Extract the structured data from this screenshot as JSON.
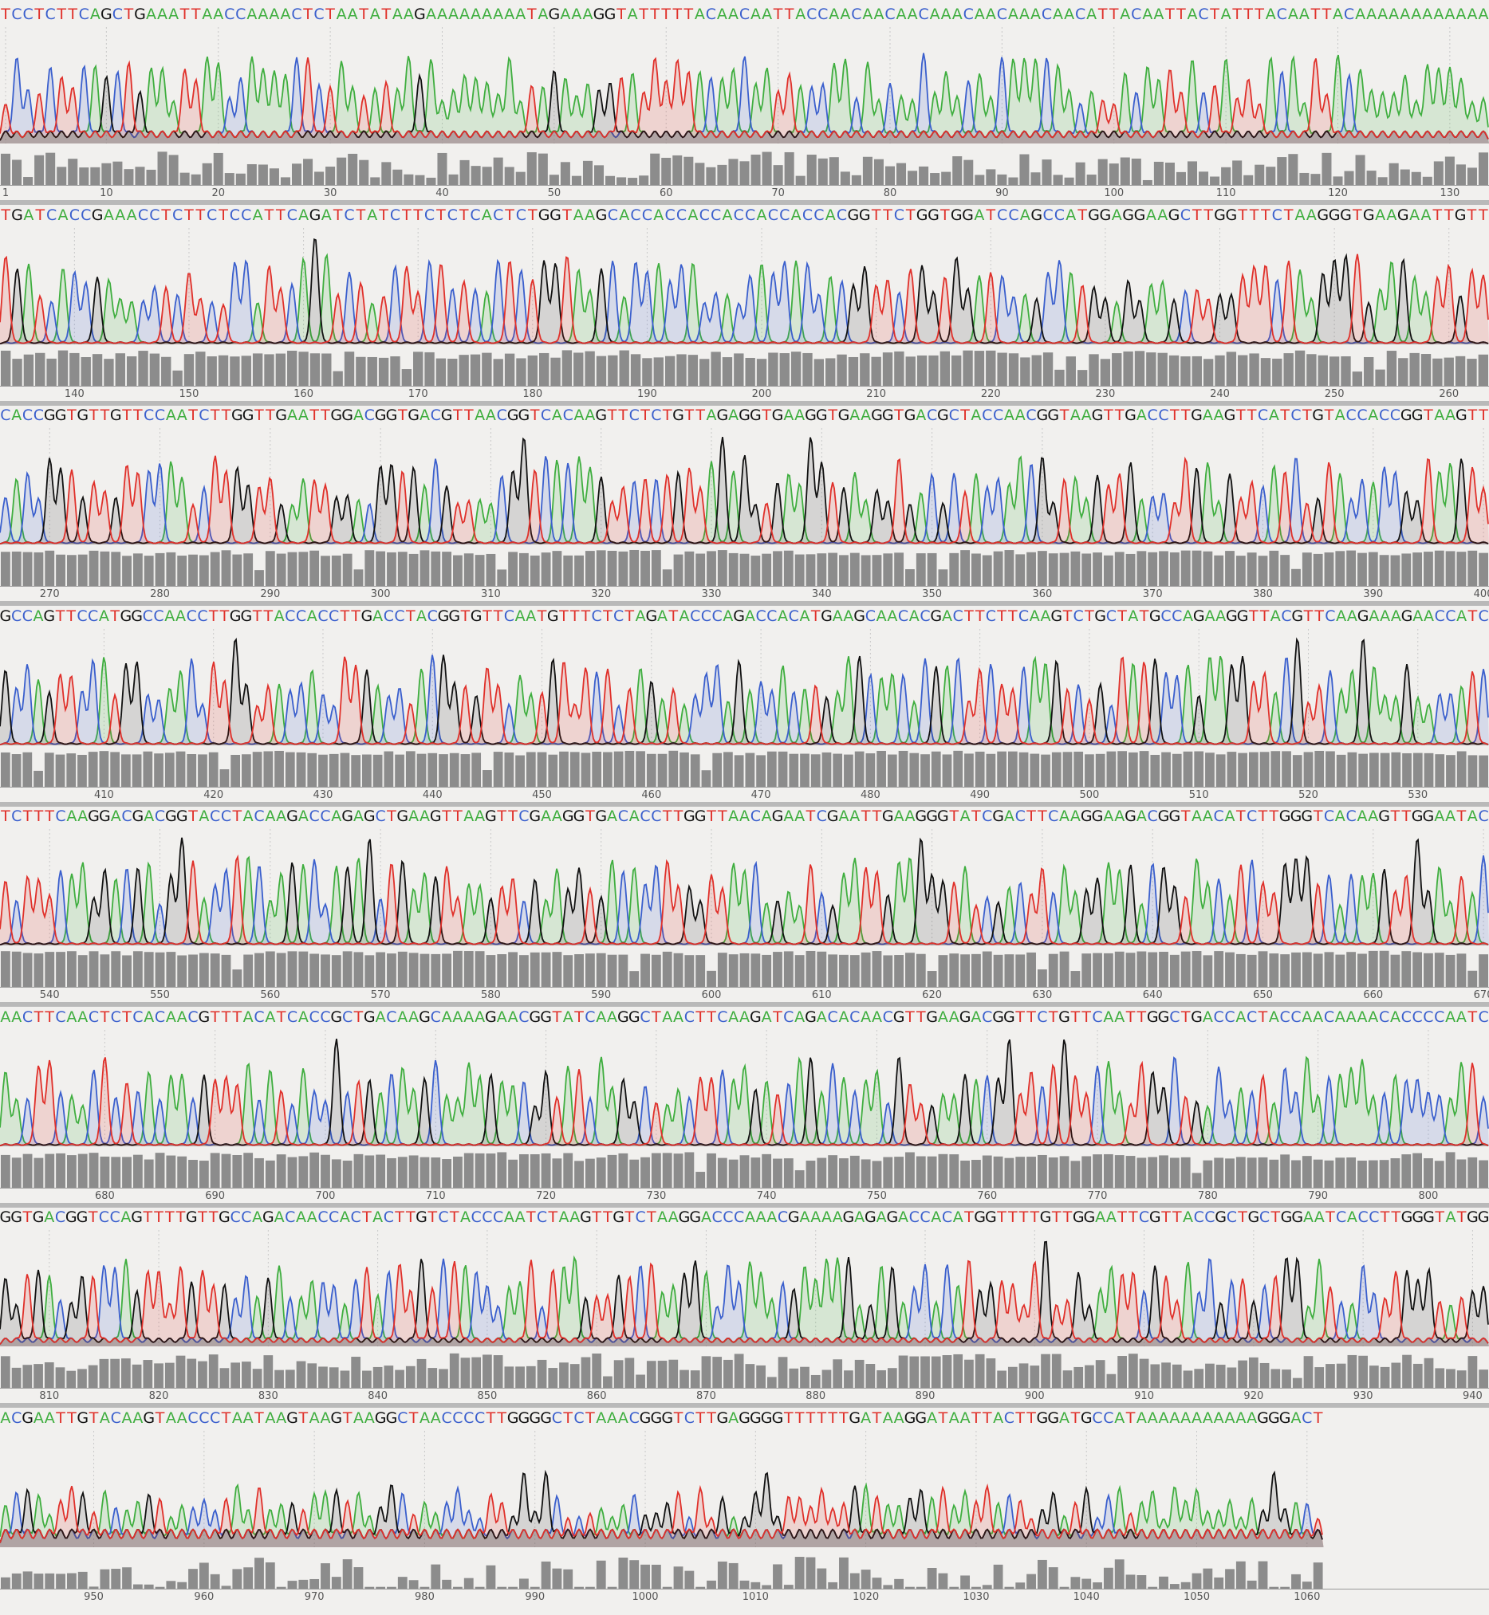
{
  "chart_data": {
    "type": "chromatogram",
    "title": "",
    "base_colors": {
      "A": "#3fae3f",
      "C": "#3a5fcd",
      "G": "#111111",
      "T": "#e0302a"
    },
    "quality_bar_color": "#8c8c8c",
    "rows": [
      {
        "start": 1,
        "seq": "TCCTCTTCAGCTGAAATTAACCAAAACTCTAATATAAGAAAAAAAAATAGAAAGGTATTTTTACAACAATTACCAACAACAACAAACAACAAACAACATTACAATTACTATTTACAATTACAAAAAAAAAAAA",
        "ticks": [
          1,
          10,
          20,
          30,
          40,
          50,
          60,
          70,
          80,
          90,
          100,
          110,
          120,
          130
        ],
        "quality": 0.55
      },
      {
        "start": 134,
        "seq": "TGATCACCGAAACCTCTTCTCCATTCAGATCTATCTTCTCTCACTCTGGTAAGCACCACCACCACCACCACCACGGTTCTGGTGGATCCAGCCATGGAGGAAGCTTGGTTTCTAAGGGTGAAGAATTGTT",
        "ticks": [
          140,
          150,
          160,
          170,
          180,
          190,
          200,
          210,
          220,
          230,
          240,
          250,
          260
        ],
        "quality": 0.85
      },
      {
        "start": 266,
        "seq": "CACCGGTGTTGTTCCAATCTTGGTTGAATTGGACGGTGACGTTAACGGTCACAAGTTCTCTGTTAGAGGTGAAGGTGAAGGTGACGCTACCAACGGTAAGTTGACCTTGAAGTTCATCTGTACCACCGGTAAGTT",
        "ticks": [
          270,
          280,
          290,
          300,
          310,
          320,
          330,
          340,
          350,
          360,
          370,
          380,
          390,
          400
        ],
        "quality": 0.9
      },
      {
        "start": 401,
        "seq": "GCCAGTTCCATGGCCAACCTTGGTTACCACCTTGACCTACGGTGTTCAATGTTTCTCTAGATACCCAGACCACATGAAGCAACACGACTTCTTCAAGTCTGCTATGCCAGAAGGTTACGTTCAAGAAAGAACCATC",
        "ticks": [
          410,
          420,
          430,
          440,
          450,
          460,
          470,
          480,
          490,
          500,
          510,
          520,
          530
        ],
        "quality": 0.92
      },
      {
        "start": 536,
        "seq": "TCTTTCAAGGACGACGGTACCTACAAGACCAGAGCTGAAGTTAAGTTCGAAGGTGACACCTTGGTTAACAGAATCGAATTGAAGGGTATCGACTTCAAGGAAGACGGTAACATCTTGGGTCACAAGTTGGAATAC",
        "ticks": [
          540,
          550,
          560,
          570,
          580,
          590,
          600,
          610,
          620,
          630,
          640,
          650,
          660,
          670
        ],
        "quality": 0.92
      },
      {
        "start": 671,
        "seq": "AACTTCAACTCTCACAACGTTTACATCACCGCTGACAAGCAAAAGAACGGTATCAAGGCTAACTTCAAGATCAGACACAACGTTGAAGACGGTTCTGTTCAATTGGCTGACCACTACCAACAAAACACCCCAATC",
        "ticks": [
          680,
          690,
          700,
          710,
          720,
          730,
          740,
          750,
          760,
          770,
          780,
          790,
          800
        ],
        "quality": 0.85
      },
      {
        "start": 806,
        "seq": "GGTGACGGTCCAGTTTTGTTGCCAGACAACCACTACTTGTCTACCCAATCTAAGTTGTCTAAGGACCCAAACGAAAAGAGAGACCACATGGTTTTGTTGGAATTCGTTACCGCTGCTGGAATCACCTTGGGTATGG",
        "ticks": [
          810,
          820,
          830,
          840,
          850,
          860,
          870,
          880,
          890,
          900,
          910,
          920,
          930,
          940
        ],
        "quality": 0.7
      },
      {
        "start": 942,
        "seq": "ACGAATTGTACAAGTAACCCTAATAAGTAAGTAAGGCTAACCCCTTGGGGCTCTAAACGGGTCTTGAGGGGTTTTTTGATAAGGATAATTACTTGGATGCCATAAAAAAAAAAAGGGACT",
        "ticks": [
          950,
          960,
          970,
          980,
          990,
          1000,
          1010,
          1020,
          1030,
          1040,
          1050,
          1060
        ],
        "quality": 0.35
      }
    ]
  }
}
